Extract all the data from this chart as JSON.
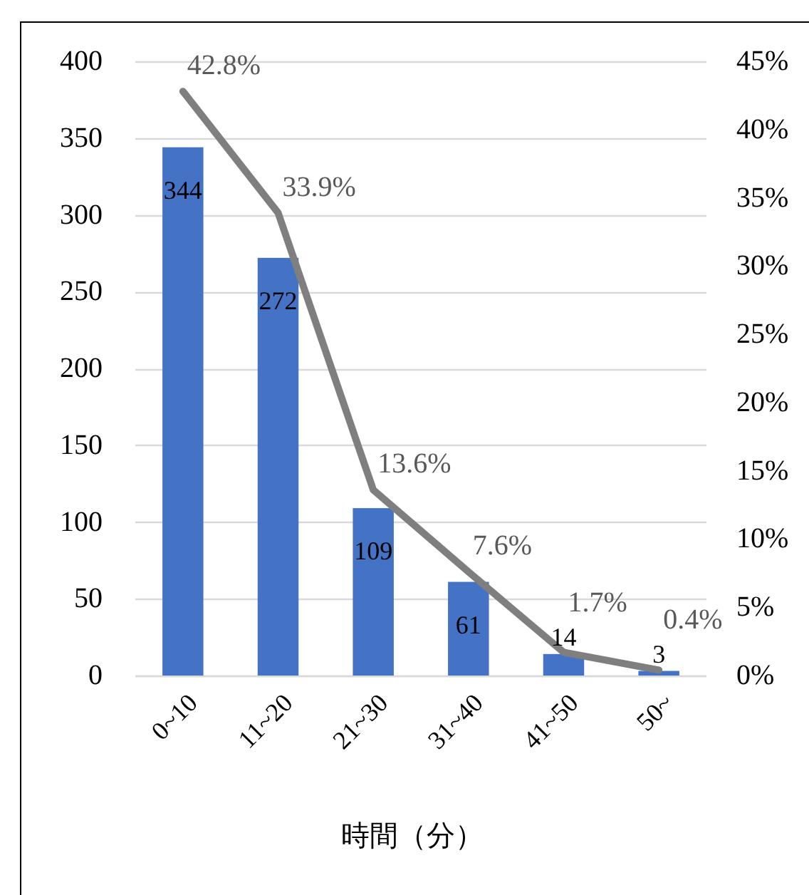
{
  "chart_data": {
    "type": "bar",
    "xlabel": "時間（分）",
    "categories": [
      "0~10",
      "11~20",
      "21~30",
      "31~40",
      "41~50",
      "50~"
    ],
    "series": [
      {
        "color": "#4472c4",
        "values": [
          344,
          272,
          109,
          61,
          14,
          3
        ],
        "value_labels": [
          "344",
          "272",
          "109",
          "61",
          "14",
          "3"
        ]
      },
      {
        "type": "line",
        "axis": "y2",
        "color": "#7f7f7f",
        "values": [
          42.8,
          33.9,
          13.6,
          7.6,
          1.7,
          0.4
        ],
        "value_labels": [
          "42.8%",
          "33.9%",
          "13.6%",
          "7.6%",
          "1.7%",
          "0.4%"
        ]
      }
    ],
    "ylim": [
      0,
      400
    ],
    "yticks": [
      0,
      50,
      100,
      150,
      200,
      250,
      300,
      350,
      400
    ],
    "y2lim": [
      0,
      45
    ],
    "y2ticks": [
      {
        "value": 0,
        "label": "0%"
      },
      {
        "value": 5,
        "label": "5%"
      },
      {
        "value": 10,
        "label": "10%"
      },
      {
        "value": 15,
        "label": "15%"
      },
      {
        "value": 20,
        "label": "20%"
      },
      {
        "value": 25,
        "label": "25%"
      },
      {
        "value": 30,
        "label": "30%"
      },
      {
        "value": 35,
        "label": "35%"
      },
      {
        "value": 40,
        "label": "40%"
      },
      {
        "value": 45,
        "label": "45%"
      }
    ],
    "grid": "y"
  }
}
